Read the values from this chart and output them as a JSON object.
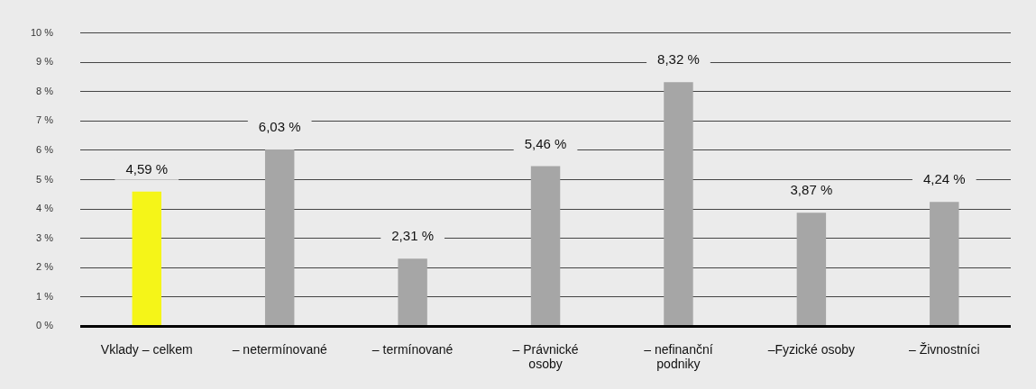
{
  "chart_data": {
    "type": "bar",
    "categories": [
      "Vklady – celkem",
      "– netermínované",
      "– termínované",
      "– Právnické osoby",
      "– nefinanční podniky",
      "–Fyzické osoby",
      "– Živnostníci"
    ],
    "values": [
      4.59,
      6.03,
      2.31,
      5.46,
      8.32,
      3.87,
      4.24
    ],
    "colors": [
      "#f5f518",
      "#a6a6a6",
      "#a6a6a6",
      "#a6a6a6",
      "#a6a6a6",
      "#a6a6a6",
      "#a6a6a6"
    ],
    "value_labels": [
      "4,59 %",
      "6,03 %",
      "2,31 %",
      "5,46 %",
      "8,32 %",
      "3,87 %",
      "4,24 %"
    ],
    "ylim": [
      0,
      10
    ],
    "yticks": [
      {
        "value": 0,
        "label": "0 %"
      },
      {
        "value": 1,
        "label": "1 %"
      },
      {
        "value": 2,
        "label": "2 %"
      },
      {
        "value": 3,
        "label": "3 %"
      },
      {
        "value": 4,
        "label": "4 %"
      },
      {
        "value": 5,
        "label": "5 %"
      },
      {
        "value": 6,
        "label": "6 %"
      },
      {
        "value": 7,
        "label": "7 %"
      },
      {
        "value": 8,
        "label": "8 %"
      },
      {
        "value": 9,
        "label": "9 %"
      },
      {
        "value": 10,
        "label": "10 %"
      }
    ],
    "grid": "y"
  }
}
